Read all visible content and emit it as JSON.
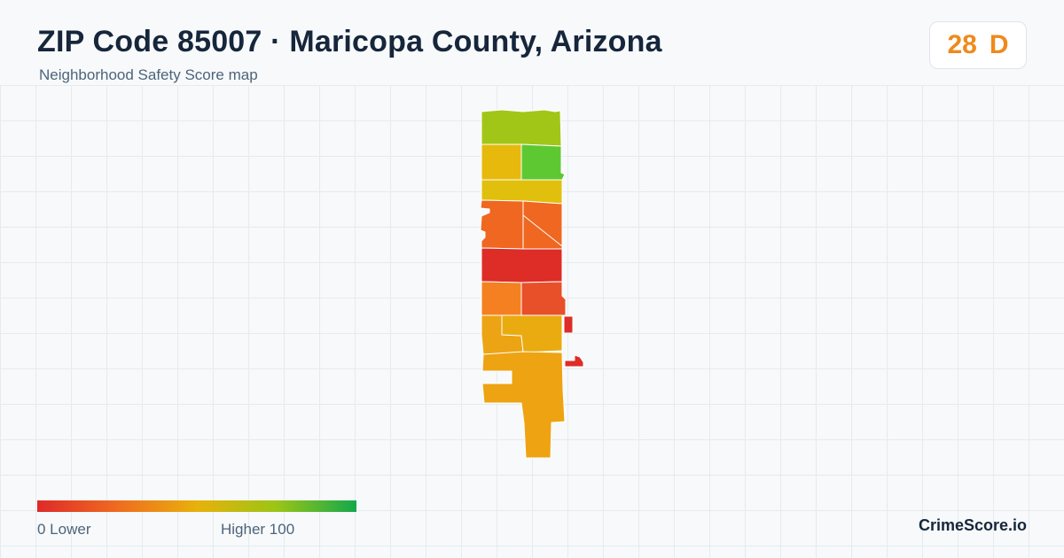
{
  "header": {
    "title": "ZIP Code 85007 · Maricopa County, Arizona",
    "subtitle": "Neighborhood Safety Score map"
  },
  "score": {
    "value": "28",
    "grade": "D",
    "color": "#ee8a1c"
  },
  "map": {
    "regions": [
      {
        "name": "region-north-top",
        "score_color": "#a2c617"
      },
      {
        "name": "region-north-west",
        "score_color": "#e6b90c"
      },
      {
        "name": "region-north-east",
        "score_color": "#5ec833"
      },
      {
        "name": "region-upper-band",
        "score_color": "#e0c00c"
      },
      {
        "name": "region-mid-west",
        "score_color": "#ef6720"
      },
      {
        "name": "region-mid-east",
        "score_color": "#ef6720"
      },
      {
        "name": "region-central-band",
        "score_color": "#de2c27"
      },
      {
        "name": "region-lower-west",
        "score_color": "#f48021"
      },
      {
        "name": "region-lower-east",
        "score_color": "#e8502a"
      },
      {
        "name": "region-south-west",
        "score_color": "#eca414"
      },
      {
        "name": "region-south-east",
        "score_color": "#e9ab10"
      },
      {
        "name": "region-south-tail",
        "score_color": "#eea312"
      },
      {
        "name": "region-east-fragment",
        "score_color": "#de2c27"
      }
    ]
  },
  "legend": {
    "low_label": "0  Lower",
    "high_label": "Higher  100",
    "gradient_colors": [
      "#de2a29",
      "#ef6b20",
      "#e8b10c",
      "#9bc516",
      "#13a84c"
    ]
  },
  "footer": {
    "brand": "CrimeScore.io"
  }
}
